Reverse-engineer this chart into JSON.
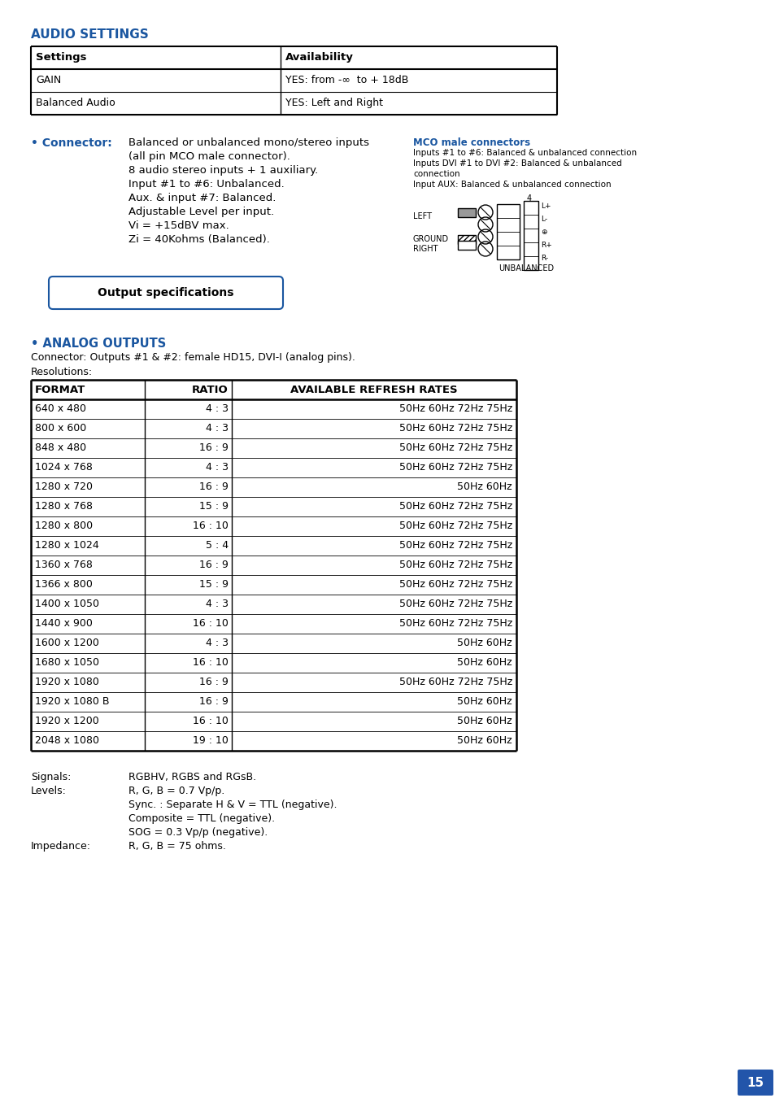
{
  "page_bg": "#ffffff",
  "blue_heading": "#1a56a0",
  "text_color": "#000000",
  "page_num_bg": "#2255aa",
  "page_num_text": "#ffffff",
  "page_num": "15",
  "section_title": "AUDIO SETTINGS",
  "audio_table_headers": [
    "Settings",
    "Availability"
  ],
  "audio_table_rows": [
    [
      "GAIN",
      "YES: from -∞  to + 18dB"
    ],
    [
      "Balanced Audio",
      "YES: Left and Right"
    ]
  ],
  "connector_label": "• Connector:",
  "connector_lines": [
    "Balanced or unbalanced mono/stereo inputs",
    "(all pin MCO male connector).",
    "8 audio stereo inputs + 1 auxiliary.",
    "Input #1 to #6: Unbalanced.",
    "Aux. & input #7: Balanced.",
    "Adjustable Level per input.",
    "Vi = +15dBV max.",
    "Zi = 40Kohms (Balanced)."
  ],
  "mco_title": "MCO male connectors",
  "mco_lines": [
    "Inputs #1 to #6: Balanced & unbalanced connection",
    "Inputs DVI #1 to DVI #2: Balanced & unbalanced",
    "connection",
    "Input AUX: Balanced & unbalanced connection"
  ],
  "output_spec_button": "Output specifications",
  "analog_outputs_title": "• ANALOG OUTPUTS",
  "analog_connector_line": "Connector: Outputs #1 & #2: female HD15, DVI-I (analog pins).",
  "resolutions_label": "Resolutions:",
  "res_table_headers": [
    "FORMAT",
    "RATIO",
    "AVAILABLE REFRESH RATES"
  ],
  "res_table_rows": [
    [
      "640 x 480",
      "4 : 3",
      "50Hz 60Hz 72Hz 75Hz"
    ],
    [
      "800 x 600",
      "4 : 3",
      "50Hz 60Hz 72Hz 75Hz"
    ],
    [
      "848 x 480",
      "16 : 9",
      "50Hz 60Hz 72Hz 75Hz"
    ],
    [
      "1024 x 768",
      "4 : 3",
      "50Hz 60Hz 72Hz 75Hz"
    ],
    [
      "1280 x 720",
      "16 : 9",
      "50Hz 60Hz"
    ],
    [
      "1280 x 768",
      "15 : 9",
      "50Hz 60Hz 72Hz 75Hz"
    ],
    [
      "1280 x 800",
      "16 : 10",
      "50Hz 60Hz 72Hz 75Hz"
    ],
    [
      "1280 x 1024",
      "5 : 4",
      "50Hz 60Hz 72Hz 75Hz"
    ],
    [
      "1360 x 768",
      "16 : 9",
      "50Hz 60Hz 72Hz 75Hz"
    ],
    [
      "1366 x 800",
      "15 : 9",
      "50Hz 60Hz 72Hz 75Hz"
    ],
    [
      "1400 x 1050",
      "4 : 3",
      "50Hz 60Hz 72Hz 75Hz"
    ],
    [
      "1440 x 900",
      "16 : 10",
      "50Hz 60Hz 72Hz 75Hz"
    ],
    [
      "1600 x 1200",
      "4 : 3",
      "50Hz 60Hz"
    ],
    [
      "1680 x 1050",
      "16 : 10",
      "50Hz 60Hz"
    ],
    [
      "1920 x 1080",
      "16 : 9",
      "50Hz 60Hz 72Hz 75Hz"
    ],
    [
      "1920 x 1080 B",
      "16 : 9",
      "50Hz 60Hz"
    ],
    [
      "1920 x 1200",
      "16 : 10",
      "50Hz 60Hz"
    ],
    [
      "2048 x 1080",
      "19 : 10",
      "50Hz 60Hz"
    ]
  ],
  "signals_label": "Signals:",
  "signals_value": "RGBHV, RGBS and RGsB.",
  "levels_label": "Levels:",
  "levels_lines": [
    "R, G, B = 0.7 Vp/p.",
    "Sync. : Separate H & V = TTL (negative).",
    "Composite = TTL (negative).",
    "SOG = 0.3 Vp/p (negative)."
  ],
  "impedance_label": "Impedance:",
  "impedance_value": "R, G, B = 75 ohms."
}
